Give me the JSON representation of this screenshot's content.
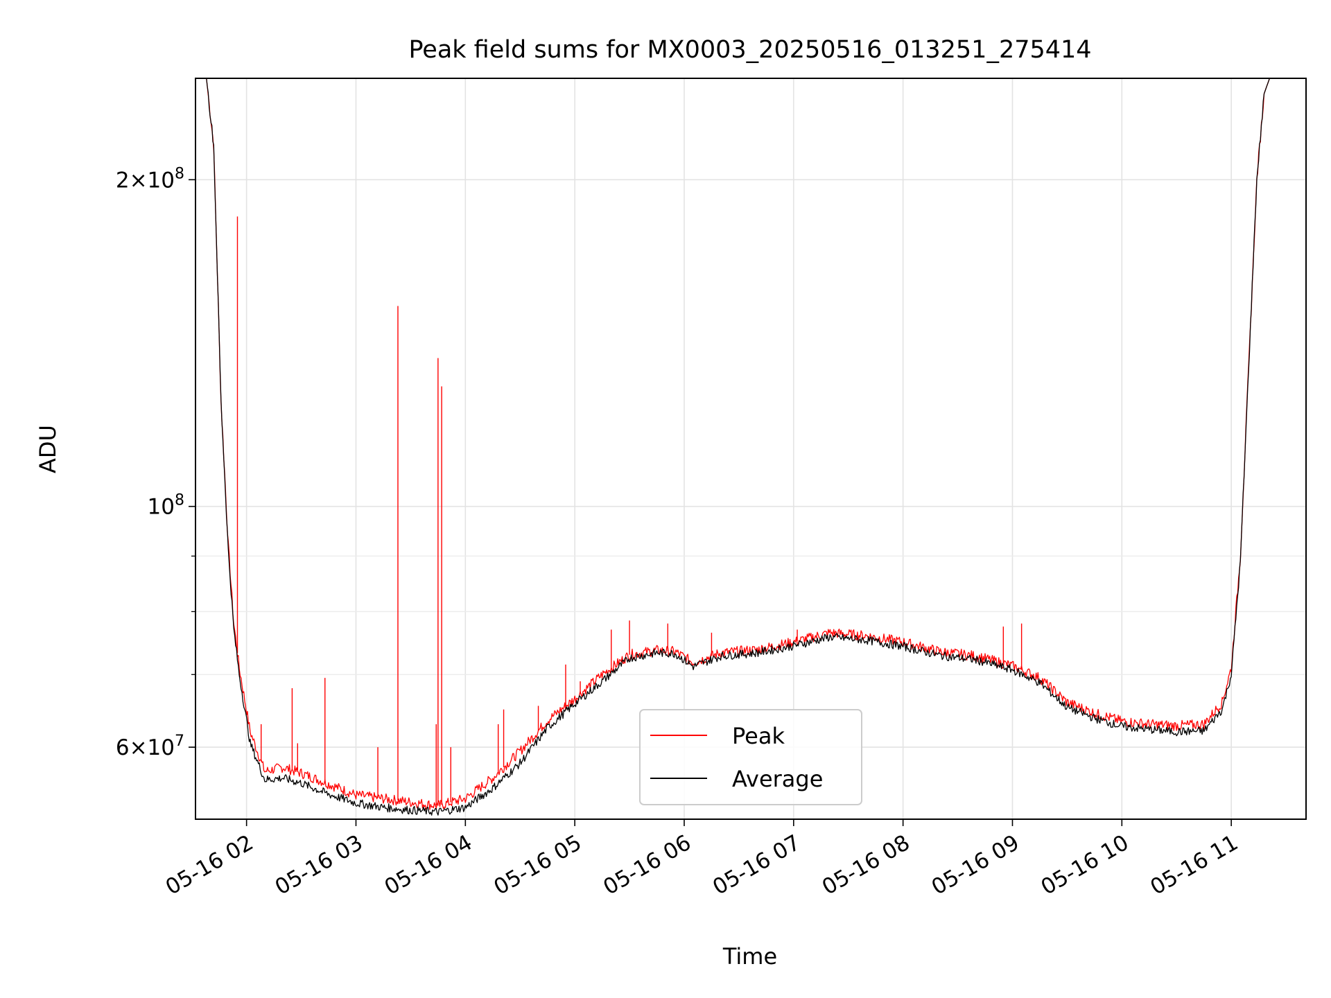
{
  "chart_data": {
    "type": "line",
    "title": "Peak field sums for MX0003_20250516_013251_275414",
    "xlabel": "Time",
    "ylabel": "ADU",
    "yscale": "log",
    "xlim": [
      "05-16 01:32",
      "05-16 11:41"
    ],
    "ylim": [
      51500000,
      248000000
    ],
    "grid": true,
    "legend_position": "lower center",
    "x_ticks": [
      "05-16 02",
      "05-16 03",
      "05-16 04",
      "05-16 05",
      "05-16 06",
      "05-16 07",
      "05-16 08",
      "05-16 09",
      "05-16 10",
      "05-16 11"
    ],
    "y_ticks": [
      {
        "value": 200000000,
        "mantissa": "2",
        "exponent": "8"
      },
      {
        "value": 100000000,
        "mantissa": "",
        "exponent": "8"
      },
      {
        "value": 60000000,
        "mantissa": "6",
        "exponent": "7"
      }
    ],
    "series": [
      {
        "name": "Peak",
        "color": "#ff0000",
        "points": [
          [
            "05-16 01:32",
            248000000
          ],
          [
            "05-16 01:38",
            248000000
          ],
          [
            "05-16 01:42",
            215000000
          ],
          [
            "05-16 01:46",
            125000000
          ],
          [
            "05-16 01:50",
            92000000
          ],
          [
            "05-16 01:53",
            78000000
          ],
          [
            "05-16 01:56",
            71000000
          ],
          [
            "05-16 02:02",
            62000000
          ],
          [
            "05-16 02:10",
            57000000
          ],
          [
            "05-16 02:20",
            57500000
          ],
          [
            "05-16 02:30",
            56800000
          ],
          [
            "05-16 02:45",
            55500000
          ],
          [
            "05-16 03:00",
            54200000
          ],
          [
            "05-16 03:15",
            53800000
          ],
          [
            "05-16 03:30",
            53400000
          ],
          [
            "05-16 03:45",
            53000000
          ],
          [
            "05-16 04:00",
            53800000
          ],
          [
            "05-16 04:15",
            56200000
          ],
          [
            "05-16 04:30",
            59500000
          ],
          [
            "05-16 04:45",
            63500000
          ],
          [
            "05-16 05:00",
            66500000
          ],
          [
            "05-16 05:15",
            70000000
          ],
          [
            "05-16 05:30",
            73000000
          ],
          [
            "05-16 05:45",
            73700000
          ],
          [
            "05-16 05:55",
            73500000
          ],
          [
            "05-16 06:05",
            71800000
          ],
          [
            "05-16 06:20",
            73300000
          ],
          [
            "05-16 06:40",
            73800000
          ],
          [
            "05-16 07:00",
            75000000
          ],
          [
            "05-16 07:20",
            76500000
          ],
          [
            "05-16 07:40",
            76000000
          ],
          [
            "05-16 08:00",
            75000000
          ],
          [
            "05-16 08:20",
            73500000
          ],
          [
            "05-16 08:40",
            72800000
          ],
          [
            "05-16 09:00",
            71300000
          ],
          [
            "05-16 09:15",
            69500000
          ],
          [
            "05-16 09:30",
            66000000
          ],
          [
            "05-16 09:45",
            64500000
          ],
          [
            "05-16 10:00",
            63400000
          ],
          [
            "05-16 10:15",
            63000000
          ],
          [
            "05-16 10:30",
            62800000
          ],
          [
            "05-16 10:45",
            63000000
          ],
          [
            "05-16 10:55",
            66000000
          ],
          [
            "05-16 11:00",
            71000000
          ],
          [
            "05-16 11:05",
            90000000
          ],
          [
            "05-16 11:10",
            140000000
          ],
          [
            "05-16 11:14",
            200000000
          ],
          [
            "05-16 11:18",
            240000000
          ],
          [
            "05-16 11:21",
            248000000
          ],
          [
            "05-16 11:41",
            248000000
          ]
        ],
        "spikes": [
          [
            "05-16 01:55",
            185000000
          ],
          [
            "05-16 02:08",
            63000000
          ],
          [
            "05-16 02:25",
            68000000
          ],
          [
            "05-16 02:28",
            60500000
          ],
          [
            "05-16 02:43",
            69500000
          ],
          [
            "05-16 03:12",
            60000000
          ],
          [
            "05-16 03:23",
            153000000
          ],
          [
            "05-16 03:45",
            137000000
          ],
          [
            "05-16 03:47",
            129000000
          ],
          [
            "05-16 03:44",
            63000000
          ],
          [
            "05-16 03:52",
            60000000
          ],
          [
            "05-16 04:18",
            63000000
          ],
          [
            "05-16 04:21",
            65000000
          ],
          [
            "05-16 04:40",
            65500000
          ],
          [
            "05-16 04:55",
            71500000
          ],
          [
            "05-16 05:03",
            69000000
          ],
          [
            "05-16 05:20",
            77000000
          ],
          [
            "05-16 05:30",
            78500000
          ],
          [
            "05-16 05:51",
            78000000
          ],
          [
            "05-16 06:15",
            76500000
          ],
          [
            "05-16 07:02",
            77000000
          ],
          [
            "05-16 08:15",
            74000000
          ],
          [
            "05-16 08:55",
            77500000
          ],
          [
            "05-16 09:05",
            78000000
          ]
        ]
      },
      {
        "name": "Average",
        "color": "#000000",
        "points": [
          [
            "05-16 01:32",
            248000000
          ],
          [
            "05-16 01:38",
            248000000
          ],
          [
            "05-16 01:42",
            215000000
          ],
          [
            "05-16 01:46",
            125000000
          ],
          [
            "05-16 01:50",
            91000000
          ],
          [
            "05-16 01:53",
            77000000
          ],
          [
            "05-16 01:56",
            70000000
          ],
          [
            "05-16 02:02",
            60500000
          ],
          [
            "05-16 02:10",
            56000000
          ],
          [
            "05-16 02:20",
            56200000
          ],
          [
            "05-16 02:30",
            55600000
          ],
          [
            "05-16 02:45",
            54300000
          ],
          [
            "05-16 03:00",
            53300000
          ],
          [
            "05-16 03:15",
            52800000
          ],
          [
            "05-16 03:30",
            52500000
          ],
          [
            "05-16 03:45",
            52300000
          ],
          [
            "05-16 04:00",
            52800000
          ],
          [
            "05-16 04:15",
            55000000
          ],
          [
            "05-16 04:30",
            58000000
          ],
          [
            "05-16 04:45",
            62500000
          ],
          [
            "05-16 05:00",
            65800000
          ],
          [
            "05-16 05:15",
            69000000
          ],
          [
            "05-16 05:30",
            72500000
          ],
          [
            "05-16 05:45",
            73300000
          ],
          [
            "05-16 05:55",
            73200000
          ],
          [
            "05-16 06:05",
            71200000
          ],
          [
            "05-16 06:20",
            72800000
          ],
          [
            "05-16 06:40",
            73300000
          ],
          [
            "05-16 07:00",
            74400000
          ],
          [
            "05-16 07:20",
            75800000
          ],
          [
            "05-16 07:40",
            75300000
          ],
          [
            "05-16 08:00",
            74300000
          ],
          [
            "05-16 08:20",
            72900000
          ],
          [
            "05-16 08:40",
            72200000
          ],
          [
            "05-16 09:00",
            70700000
          ],
          [
            "05-16 09:15",
            68800000
          ],
          [
            "05-16 09:30",
            65300000
          ],
          [
            "05-16 09:45",
            63800000
          ],
          [
            "05-16 10:00",
            62700000
          ],
          [
            "05-16 10:15",
            62300000
          ],
          [
            "05-16 10:30",
            62000000
          ],
          [
            "05-16 10:45",
            62100000
          ],
          [
            "05-16 10:55",
            65000000
          ],
          [
            "05-16 11:00",
            70000000
          ],
          [
            "05-16 11:05",
            89000000
          ],
          [
            "05-16 11:10",
            140000000
          ],
          [
            "05-16 11:14",
            200000000
          ],
          [
            "05-16 11:18",
            240000000
          ],
          [
            "05-16 11:21",
            248000000
          ],
          [
            "05-16 11:41",
            248000000
          ]
        ]
      }
    ]
  }
}
